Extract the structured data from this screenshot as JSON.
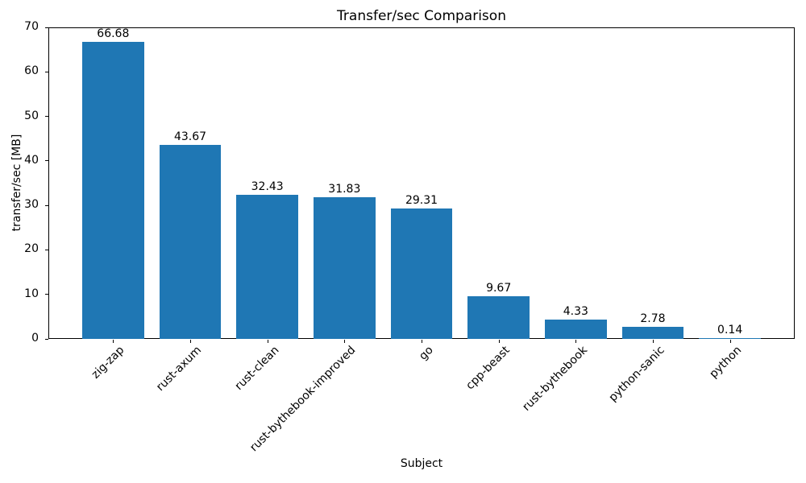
{
  "chart_data": {
    "type": "bar",
    "title": "Transfer/sec Comparison",
    "xlabel": "Subject",
    "ylabel": "transfer/sec [MB]",
    "categories": [
      "zig-zap",
      "rust-axum",
      "rust-clean",
      "rust-bythebook-improved",
      "go",
      "cpp-beast",
      "rust-bythebook",
      "python-sanic",
      "python"
    ],
    "values": [
      66.68,
      43.67,
      32.43,
      31.83,
      29.31,
      9.67,
      4.33,
      2.78,
      0.14
    ],
    "value_labels": [
      "66.68",
      "43.67",
      "32.43",
      "31.83",
      "29.31",
      "9.67",
      "4.33",
      "2.78",
      "0.14"
    ],
    "ylim": [
      0,
      70
    ],
    "yticks": [
      0,
      10,
      20,
      30,
      40,
      50,
      60,
      70
    ],
    "bar_color": "#1f77b4",
    "grid": false,
    "legend": null
  }
}
